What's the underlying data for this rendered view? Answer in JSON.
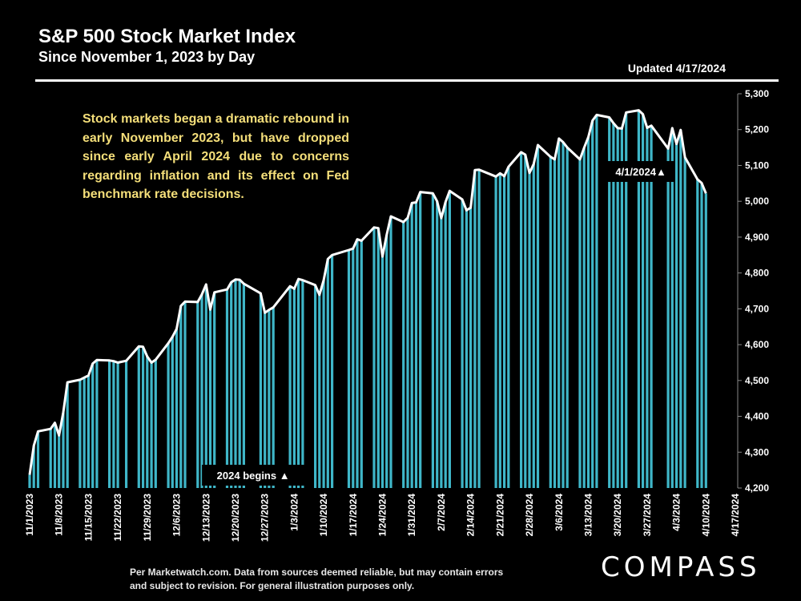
{
  "header": {
    "title": "S&P 500 Stock Market Index",
    "subtitle": "Since November 1, 2023 by Day",
    "updated": "Updated 4/17/2024"
  },
  "note": "Stock markets began a dramatic rebound in early November 2023, but have dropped since early April 2024 due to concerns regarding inflation and its effect on Fed benchmark rate decisions.",
  "footer": "Per Marketwatch.com. Data from sources deemed reliable, but may contain errors and subject to revision. For general illustration purposes only.",
  "logo": "COMPASS",
  "colors": {
    "bar": "#3fb6c8",
    "line": "#ffffff",
    "background": "#000000",
    "note_text": "#f5df7a"
  },
  "chart_data": {
    "type": "bar",
    "title": "S&P 500 Stock Market Index",
    "ylim": [
      4200,
      5300
    ],
    "yticks": [
      "4,200",
      "4,300",
      "4,400",
      "4,500",
      "4,600",
      "4,700",
      "4,800",
      "4,900",
      "5,000",
      "5,100",
      "5,200",
      "5,300"
    ],
    "xticks": [
      "11/1/2023",
      "11/8/2023",
      "11/15/2023",
      "11/22/2023",
      "11/29/2023",
      "12/6/2023",
      "12/13/2023",
      "12/20/2023",
      "12/27/2023",
      "1/3/2024",
      "1/10/2024",
      "1/17/2024",
      "1/24/2024",
      "1/31/2024",
      "2/7/2024",
      "2/14/2024",
      "2/21/2024",
      "2/28/2024",
      "3/6/2024",
      "3/13/2024",
      "3/20/2024",
      "3/27/2024",
      "4/3/2024",
      "4/10/2024",
      "4/17/2024"
    ],
    "overlay": "line",
    "grid": false,
    "x_start": "11/1/2023",
    "x_end": "4/17/2024",
    "values": [
      4237,
      4318,
      4358,
      4365,
      4382,
      4347,
      4411,
      4495,
      4502,
      4508,
      4514,
      4547,
      4557,
      4556,
      4554,
      4550,
      4555,
      4595,
      4594,
      4567,
      4550,
      4558,
      4604,
      4622,
      4644,
      4708,
      4720,
      4719,
      4740,
      4768,
      4698,
      4746,
      4754,
      4774,
      4782,
      4781,
      4770,
      4743,
      4689,
      4697,
      4704,
      4763,
      4756,
      4783,
      4780,
      4766,
      4739,
      4780,
      4839,
      4850,
      4864,
      4868,
      4894,
      4890,
      4927,
      4925,
      4846,
      4906,
      4958,
      4942,
      4954,
      4995,
      4997,
      5026,
      5022,
      5000,
      4953,
      4998,
      5029,
      5005,
      4975,
      4982,
      5087,
      5088,
      5069,
      5078,
      5070,
      5096,
      5137,
      5130,
      5079,
      5104,
      5157,
      5124,
      5117,
      5175,
      5165,
      5150,
      5117,
      5149,
      5179,
      5225,
      5241,
      5234,
      5218,
      5204,
      5203,
      5248,
      5254,
      5243,
      5205,
      5211,
      5147,
      5204,
      5160,
      5199,
      5123,
      5061,
      5051,
      5022
    ],
    "annotations": [
      {
        "label": "2024 begins ▲",
        "at": "1/2/2024"
      },
      {
        "label": "4/1/2024▲",
        "at": "4/1/2024"
      }
    ]
  }
}
